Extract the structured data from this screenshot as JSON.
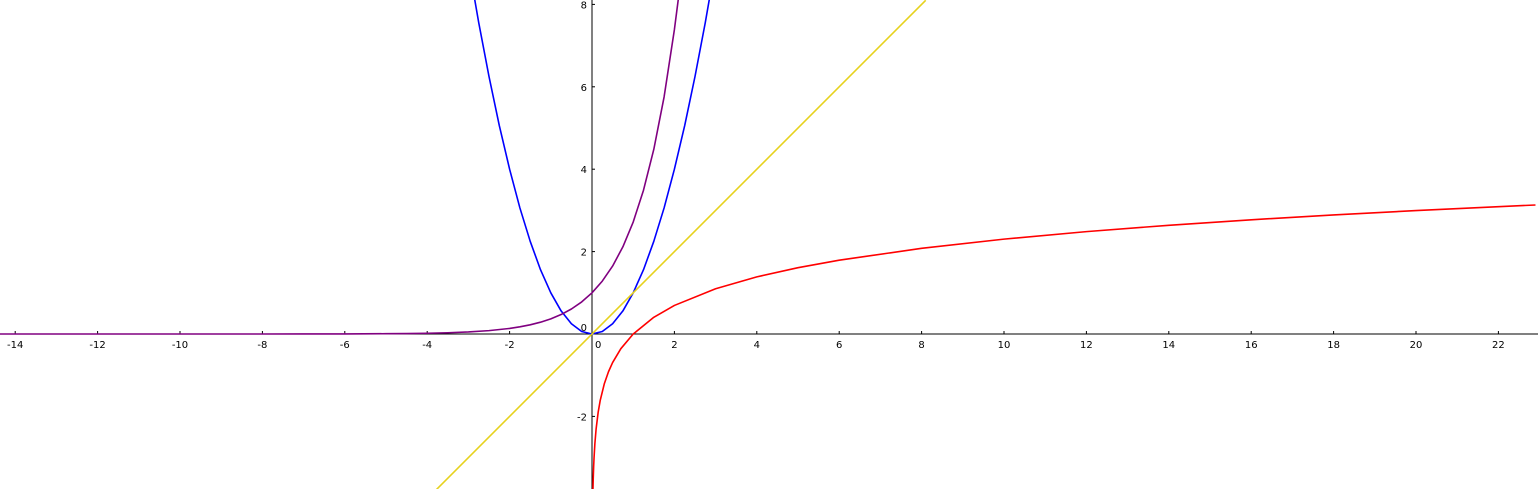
{
  "chart_data": {
    "type": "line",
    "title": "",
    "xlabel": "",
    "ylabel": "",
    "xlim": [
      -14.5,
      22.9
    ],
    "ylim": [
      -3.8,
      8.1
    ],
    "grid": false,
    "x_ticks": [
      -14,
      -12,
      -10,
      -8,
      -6,
      -4,
      -2,
      2,
      4,
      6,
      8,
      10,
      12,
      14,
      16,
      18,
      20,
      22
    ],
    "y_ticks": [
      -2,
      2,
      4,
      6,
      8
    ],
    "x_tick_labels": [
      "-14",
      "-12",
      "-10",
      "-8",
      "-6",
      "-4",
      "-2",
      "2",
      "4",
      "6",
      "8",
      "10",
      "12",
      "14",
      "16",
      "18",
      "20",
      "22"
    ],
    "y_tick_labels": [
      "-2",
      "2",
      "4",
      "6",
      "8"
    ],
    "origin_labels": {
      "x": "0",
      "y": "0"
    },
    "series": [
      {
        "color": "#0000ff",
        "x": [
          -3.0,
          -2.75,
          -2.5,
          -2.25,
          -2.0,
          -1.75,
          -1.5,
          -1.25,
          -1.0,
          -0.75,
          -0.5,
          -0.25,
          0.0,
          0.25,
          0.5,
          0.75,
          1.0,
          1.25,
          1.5,
          1.75,
          2.0,
          2.25,
          2.5,
          2.75,
          3.0
        ],
        "y": [
          9.0,
          7.56,
          6.25,
          5.06,
          4.0,
          3.06,
          2.25,
          1.56,
          1.0,
          0.56,
          0.25,
          0.06,
          0.0,
          0.06,
          0.25,
          0.56,
          1.0,
          1.56,
          2.25,
          3.06,
          4.0,
          5.06,
          6.25,
          7.56,
          9.0
        ]
      },
      {
        "color": "#800080",
        "x": [
          -14.5,
          -12,
          -10,
          -8,
          -7,
          -6,
          -5,
          -4.5,
          -4,
          -3.5,
          -3,
          -2.5,
          -2,
          -1.75,
          -1.5,
          -1.25,
          -1,
          -0.75,
          -0.5,
          -0.25,
          0,
          0.25,
          0.5,
          0.75,
          1,
          1.25,
          1.5,
          1.75,
          2,
          2.1
        ],
        "y": [
          0.0,
          0.0,
          0.0,
          0.0003,
          0.0009,
          0.0025,
          0.0067,
          0.0111,
          0.0183,
          0.0302,
          0.0498,
          0.0821,
          0.1353,
          0.1738,
          0.2231,
          0.2865,
          0.3679,
          0.4724,
          0.6065,
          0.7788,
          1.0,
          1.284,
          1.6487,
          2.117,
          2.7183,
          3.4903,
          4.4817,
          5.7546,
          7.3891,
          8.1662
        ]
      },
      {
        "color": "#e6d21e",
        "x": [
          -3.8,
          8.1
        ],
        "y": [
          -3.8,
          8.1
        ]
      },
      {
        "color": "#ff0000",
        "x": [
          0.0224,
          0.03,
          0.04,
          0.05,
          0.07,
          0.1,
          0.15,
          0.2,
          0.3,
          0.4,
          0.5,
          0.7,
          1.0,
          1.5,
          2,
          3,
          4,
          5,
          6,
          8,
          10,
          12,
          14,
          16,
          18,
          20,
          22,
          22.9
        ],
        "y": [
          -3.8,
          -3.5066,
          -3.2189,
          -2.9957,
          -2.6593,
          -2.3026,
          -1.8971,
          -1.6094,
          -1.204,
          -0.9163,
          -0.6931,
          -0.3567,
          0.0,
          0.4055,
          0.6931,
          1.0986,
          1.3863,
          1.6094,
          1.7918,
          2.0794,
          2.3026,
          2.4849,
          2.6391,
          2.7726,
          2.8904,
          2.9957,
          3.091,
          3.1311
        ]
      }
    ]
  }
}
